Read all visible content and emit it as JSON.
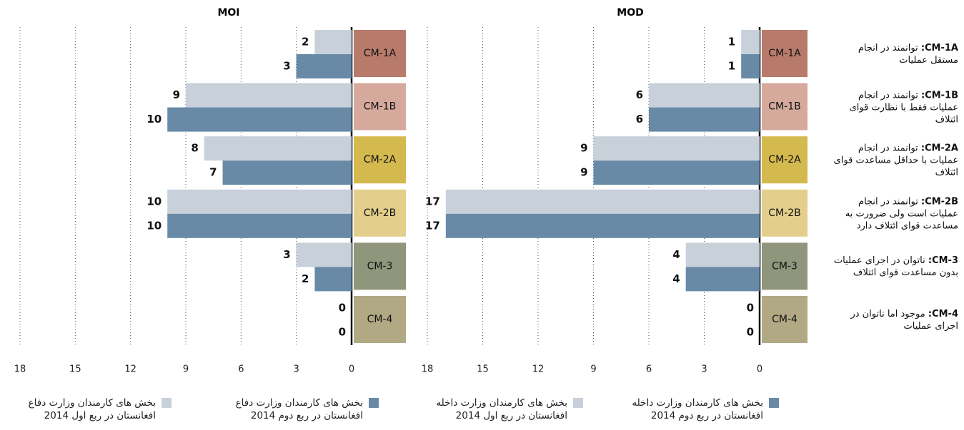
{
  "chart_data": [
    {
      "type": "bar",
      "title": "MOI",
      "categories": [
        "CM-1A",
        "CM-1B",
        "CM-2A",
        "CM-2B",
        "CM-3",
        "CM-4"
      ],
      "category_colors": [
        "#b87b6b",
        "#d5aa9c",
        "#d4b94f",
        "#e3cf8b",
        "#8f967b",
        "#b0a984"
      ],
      "series": [
        {
          "name": "بخش های کارمندان وزارت داخله افغانستان در ربع اول 2014",
          "color": "#c8d0da",
          "values": [
            2,
            9,
            8,
            10,
            3,
            0
          ]
        },
        {
          "name": "بخش های کارمندان وزارت داخله افغانستان در ربع دوم 2014",
          "color": "#688aa6",
          "values": [
            3,
            10,
            7,
            10,
            2,
            0
          ]
        }
      ],
      "xlim": [
        0,
        18
      ],
      "xticks": [
        0,
        3,
        6,
        9,
        12,
        15,
        18
      ],
      "grid": true
    },
    {
      "type": "bar",
      "title": "MOD",
      "categories": [
        "CM-1A",
        "CM-1B",
        "CM-2A",
        "CM-2B",
        "CM-3",
        "CM-4"
      ],
      "category_colors": [
        "#b87b6b",
        "#d5aa9c",
        "#d4b94f",
        "#e3cf8b",
        "#8f967b",
        "#b0a984"
      ],
      "series": [
        {
          "name": "بخش های کارمندان وزارت دفاع افغانستان در ربع اول 2014",
          "color": "#c8d0da",
          "values": [
            1,
            6,
            9,
            17,
            4,
            0
          ]
        },
        {
          "name": "بخش های کارمندان وزارت دفاع افغانستان در ربع دوم 2014",
          "color": "#688aa6",
          "values": [
            1,
            6,
            9,
            17,
            4,
            0
          ]
        }
      ],
      "xlim": [
        0,
        18
      ],
      "xticks": [
        0,
        3,
        6,
        9,
        12,
        15,
        18
      ],
      "grid": true
    }
  ],
  "descriptions": [
    {
      "code": "CM-1A:",
      "text": "توانمند در انجام مستقل عملیات"
    },
    {
      "code": "CM-1B:",
      "text": "توانمند در انجام عملیات فقط با نظارت قوای ائتلاف"
    },
    {
      "code": "CM-2A:",
      "text": "توانمند در انجام عملیات با حداقل مساعدت قوای ائتلاف"
    },
    {
      "code": "CM-2B:",
      "text": "توانمند در انجام عملیات است ولی ضرورت به مساعدت قوای ائتلاف دارد"
    },
    {
      "code": "CM-3:",
      "text": "ناتوان در اجرای عملیات بدون مساعدت قوای ائتلاف"
    },
    {
      "code": "CM-4:",
      "text": "موجود اما ناتوان در اجرای عملیات"
    }
  ]
}
